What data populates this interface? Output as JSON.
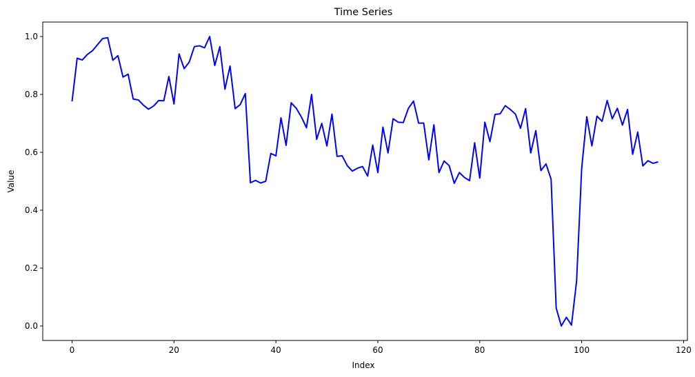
{
  "chart_data": {
    "type": "line",
    "title": "Time Series",
    "xlabel": "Index",
    "ylabel": "Value",
    "xlim": [
      -5.75,
      120.75
    ],
    "ylim": [
      -0.05,
      1.05
    ],
    "xticks": [
      0,
      20,
      40,
      60,
      80,
      100,
      120
    ],
    "yticks": [
      0.0,
      0.2,
      0.4,
      0.6,
      0.8,
      1.0
    ],
    "xtick_labels": [
      "0",
      "20",
      "40",
      "60",
      "80",
      "100",
      "120"
    ],
    "ytick_labels": [
      "0.0",
      "0.2",
      "0.4",
      "0.6",
      "0.8",
      "1.0"
    ],
    "grid": false,
    "series": [
      {
        "name": "Value",
        "color": "#0000ff",
        "values": [
          0.776,
          0.925,
          0.919,
          0.938,
          0.951,
          0.972,
          0.993,
          0.996,
          0.918,
          0.934,
          0.86,
          0.87,
          0.784,
          0.781,
          0.763,
          0.749,
          0.76,
          0.779,
          0.778,
          0.862,
          0.767,
          0.94,
          0.889,
          0.912,
          0.965,
          0.968,
          0.961,
          1.0,
          0.9,
          0.965,
          0.818,
          0.898,
          0.751,
          0.765,
          0.803,
          0.495,
          0.503,
          0.494,
          0.5,
          0.596,
          0.588,
          0.719,
          0.624,
          0.771,
          0.752,
          0.722,
          0.685,
          0.8,
          0.645,
          0.7,
          0.622,
          0.732,
          0.586,
          0.588,
          0.554,
          0.535,
          0.545,
          0.551,
          0.518,
          0.625,
          0.53,
          0.687,
          0.598,
          0.716,
          0.704,
          0.703,
          0.752,
          0.777,
          0.701,
          0.701,
          0.574,
          0.695,
          0.53,
          0.57,
          0.554,
          0.493,
          0.53,
          0.513,
          0.502,
          0.633,
          0.511,
          0.704,
          0.637,
          0.731,
          0.733,
          0.761,
          0.748,
          0.732,
          0.683,
          0.751,
          0.598,
          0.675,
          0.537,
          0.56,
          0.507,
          0.062,
          0.0,
          0.03,
          0.003,
          0.155,
          0.544,
          0.723,
          0.622,
          0.725,
          0.707,
          0.779,
          0.716,
          0.752,
          0.694,
          0.748,
          0.593,
          0.67,
          0.553,
          0.571,
          0.562,
          0.567
        ]
      }
    ]
  }
}
